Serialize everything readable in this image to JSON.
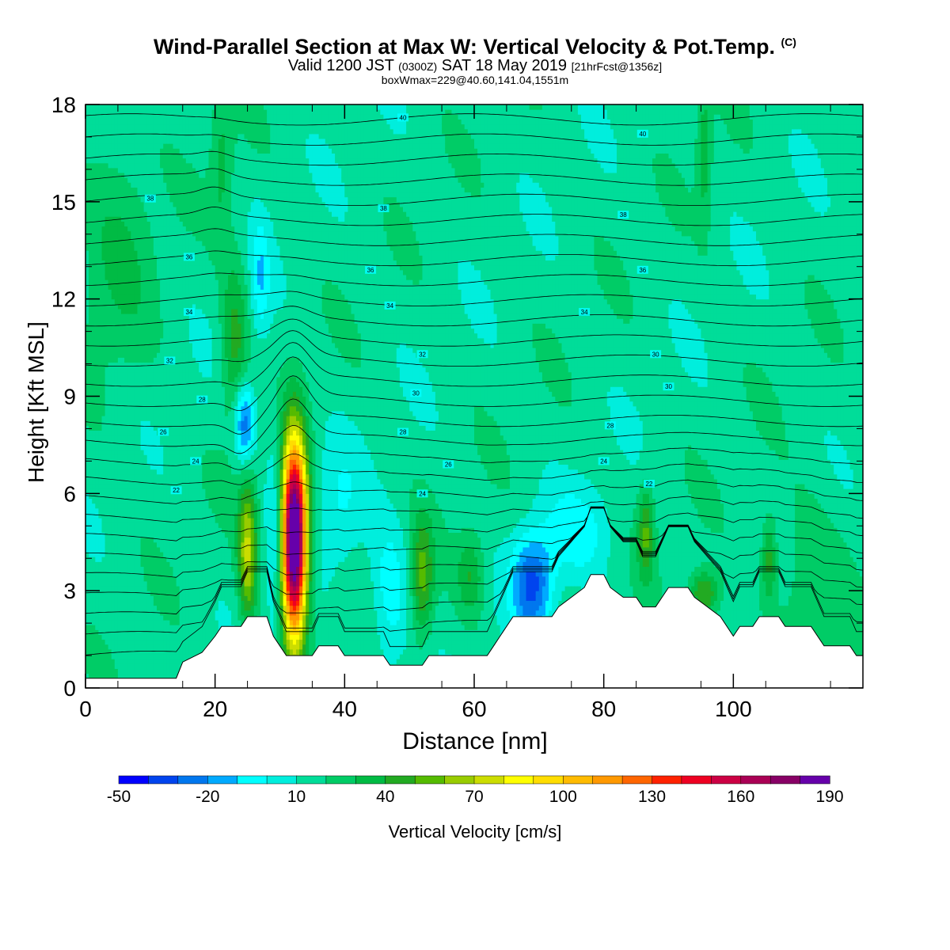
{
  "chart_data": {
    "type": "heatmap",
    "title": "Wind-Parallel Section at Max W: Vertical Velocity & Pot.Temp.",
    "title_mark": "(C)",
    "subtitle_main": "Valid 1200 JST",
    "subtitle_zulu": "(0300Z)",
    "subtitle_date": "SAT 18 May 2019",
    "subtitle_fcst": "[21hrFcst@1356z]",
    "subtitle2": "boxWmax=229@40.60,141.04,1551m",
    "xlabel": "Distance [nm]",
    "ylabel": "Height [Kft MSL]",
    "xlim": [
      0,
      120
    ],
    "ylim": [
      0,
      18
    ],
    "xticks": [
      0,
      20,
      40,
      60,
      80,
      100
    ],
    "yticks": [
      0,
      3,
      6,
      9,
      12,
      15,
      18
    ],
    "colorbar": {
      "label": "Vertical Velocity [cm/s]",
      "ticks": [
        -50,
        -20,
        10,
        40,
        70,
        100,
        130,
        160,
        190
      ],
      "colors": [
        "#0000ff",
        "#0044ee",
        "#0077ee",
        "#00aaff",
        "#00ffff",
        "#00eedd",
        "#00dd99",
        "#00cc66",
        "#00bb44",
        "#22aa22",
        "#55bb00",
        "#99cc00",
        "#ccdd00",
        "#ffff00",
        "#ffdd00",
        "#ffbb00",
        "#ff9900",
        "#ff6600",
        "#ff2200",
        "#ee0022",
        "#cc0044",
        "#aa0055",
        "#880066",
        "#6600aa"
      ]
    },
    "terrain_kft": [
      [
        0,
        0.3
      ],
      [
        14,
        0.3
      ],
      [
        15,
        0.8
      ],
      [
        18,
        1.1
      ],
      [
        20,
        1.6
      ],
      [
        21,
        1.9
      ],
      [
        24,
        1.9
      ],
      [
        25,
        2.2
      ],
      [
        28,
        2.2
      ],
      [
        29,
        1.6
      ],
      [
        30,
        1.3
      ],
      [
        31,
        1.0
      ],
      [
        35,
        1.0
      ],
      [
        36,
        1.3
      ],
      [
        39,
        1.3
      ],
      [
        40,
        1.0
      ],
      [
        46,
        1.0
      ],
      [
        47,
        0.7
      ],
      [
        52,
        0.7
      ],
      [
        53,
        1.0
      ],
      [
        62,
        1.0
      ],
      [
        63,
        1.3
      ],
      [
        64,
        1.6
      ],
      [
        66,
        2.2
      ],
      [
        72,
        2.2
      ],
      [
        73,
        2.5
      ],
      [
        75,
        2.8
      ],
      [
        77,
        3.1
      ],
      [
        78,
        3.5
      ],
      [
        80,
        3.5
      ],
      [
        81,
        3.1
      ],
      [
        83,
        2.8
      ],
      [
        85,
        2.8
      ],
      [
        86,
        2.5
      ],
      [
        88,
        2.5
      ],
      [
        89,
        2.8
      ],
      [
        90,
        3.1
      ],
      [
        93,
        3.1
      ],
      [
        94,
        2.8
      ],
      [
        96,
        2.5
      ],
      [
        98,
        2.2
      ],
      [
        100,
        1.6
      ],
      [
        101,
        1.9
      ],
      [
        103,
        1.9
      ],
      [
        104,
        2.2
      ],
      [
        107,
        2.2
      ],
      [
        108,
        1.9
      ],
      [
        112,
        1.9
      ],
      [
        113,
        1.6
      ],
      [
        114,
        1.3
      ],
      [
        118,
        1.3
      ],
      [
        119,
        1.0
      ],
      [
        120,
        1.0
      ]
    ],
    "w_features": [
      {
        "x": 32.2,
        "z": 4.6,
        "sx": 1.4,
        "sz": 2.1,
        "w": 205
      },
      {
        "x": 25.0,
        "z": 4.2,
        "sx": 1.0,
        "sz": 1.6,
        "w": 55
      },
      {
        "x": 52.0,
        "z": 3.4,
        "sx": 1.2,
        "sz": 1.3,
        "w": 38
      },
      {
        "x": 23.0,
        "z": 10.6,
        "sx": 1.4,
        "sz": 1.8,
        "w": 30
      },
      {
        "x": 95.5,
        "z": 2.9,
        "sx": 1.6,
        "sz": 0.5,
        "w": 40
      },
      {
        "x": 86.5,
        "z": 4.8,
        "sx": 0.9,
        "sz": 1.0,
        "w": 35
      },
      {
        "x": 105.5,
        "z": 4.0,
        "sx": 0.8,
        "sz": 0.9,
        "w": 30
      },
      {
        "x": 59.5,
        "z": 3.5,
        "sx": 1.5,
        "sz": 0.9,
        "w": 25
      },
      {
        "x": 95.5,
        "z": 16.5,
        "sx": 0.8,
        "sz": 1.5,
        "w": 22
      },
      {
        "x": 21.0,
        "z": 16.2,
        "sx": 1.2,
        "sz": 1.6,
        "w": 18
      },
      {
        "x": 5.0,
        "z": 13.5,
        "sx": 4.0,
        "sz": 3.0,
        "w": 14
      },
      {
        "x": 112.0,
        "z": 3.0,
        "sx": 4.0,
        "sz": 2.0,
        "w": 14
      },
      {
        "x": 24.5,
        "z": 8.2,
        "sx": 1.1,
        "sz": 0.9,
        "w": -45
      },
      {
        "x": 29.5,
        "z": 4.5,
        "sx": 1.0,
        "sz": 2.5,
        "w": -25
      },
      {
        "x": 27.0,
        "z": 12.6,
        "sx": 1.0,
        "sz": 1.3,
        "w": -22
      },
      {
        "x": 69.0,
        "z": 3.2,
        "sx": 2.2,
        "sz": 1.1,
        "w": -48
      },
      {
        "x": 47.0,
        "z": 2.8,
        "sx": 2.0,
        "sz": 1.6,
        "w": -22
      },
      {
        "x": 76.0,
        "z": 4.8,
        "sx": 3.5,
        "sz": 1.0,
        "w": -18
      },
      {
        "x": 39.0,
        "z": 5.5,
        "sx": 2.5,
        "sz": 1.5,
        "w": -14
      }
    ],
    "theta_labels": [
      "40",
      "40",
      "38",
      "38",
      "38",
      "36",
      "36",
      "36",
      "34",
      "34",
      "34",
      "32",
      "32",
      "30",
      "30",
      "30",
      "28",
      "28",
      "28",
      "26",
      "26",
      "24",
      "24",
      "24",
      "22",
      "22"
    ]
  }
}
